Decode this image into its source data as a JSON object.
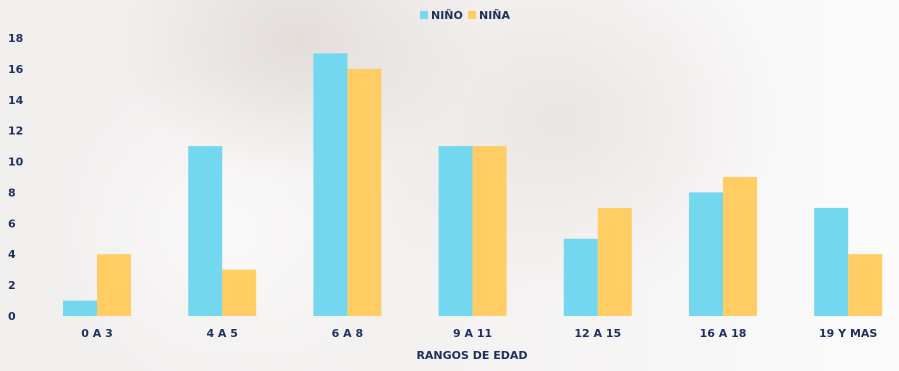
{
  "chart_data": {
    "type": "bar",
    "categories": [
      "0 A 3",
      "4 A 5",
      "6 A 8",
      "9 A 11",
      "12 A 15",
      "16 A 18",
      "19 Y MAS"
    ],
    "series": [
      {
        "name": "NIÑO",
        "color": "#72d7ef",
        "values": [
          1,
          11,
          17,
          11,
          5,
          8,
          7
        ]
      },
      {
        "name": "NIÑA",
        "color": "#ffcd63",
        "values": [
          4,
          3,
          16,
          11,
          7,
          9,
          4
        ]
      }
    ],
    "yticks": [
      "0",
      "2",
      "4",
      "6",
      "8",
      "10",
      "12",
      "14",
      "16",
      "18"
    ],
    "ylim": [
      0,
      18
    ],
    "xlabel": "RANGOS DE EDAD",
    "ylabel": "",
    "legend_position": "top-center",
    "grid": false
  }
}
